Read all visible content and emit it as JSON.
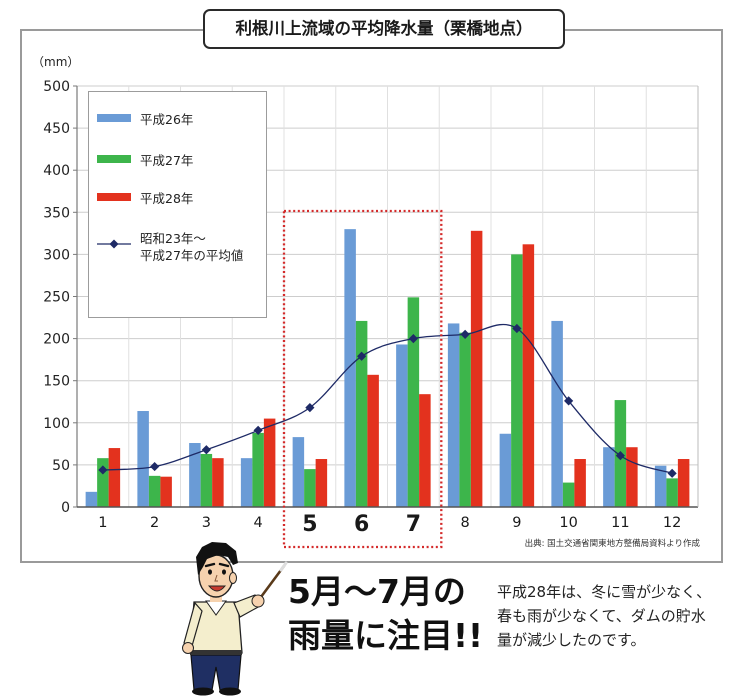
{
  "chart_data": {
    "type": "bar",
    "title": "利根川上流域の平均降水量（栗橋地点）",
    "ylabel": "（mm）",
    "xlabel": "",
    "ylim": [
      0,
      500
    ],
    "yticks": [
      0,
      50,
      100,
      150,
      200,
      250,
      300,
      350,
      400,
      450,
      500
    ],
    "categories": [
      "1",
      "2",
      "3",
      "4",
      "5",
      "6",
      "7",
      "8",
      "9",
      "10",
      "11",
      "12"
    ],
    "series": [
      {
        "name": "平成26年",
        "type": "bar",
        "color": "#6a9bd6",
        "values": [
          18,
          114,
          76,
          58,
          83,
          330,
          193,
          218,
          87,
          221,
          71,
          49
        ]
      },
      {
        "name": "平成27年",
        "type": "bar",
        "color": "#3db54b",
        "values": [
          58,
          37,
          63,
          88,
          45,
          221,
          249,
          207,
          300,
          29,
          127,
          34
        ]
      },
      {
        "name": "平成28年",
        "type": "bar",
        "color": "#e3321e",
        "values": [
          70,
          36,
          58,
          105,
          57,
          157,
          134,
          328,
          312,
          57,
          71,
          57
        ]
      },
      {
        "name": "昭和23年～\n平成27年の平均値",
        "type": "line",
        "marker": "diamond",
        "color": "#1e2a66",
        "values": [
          44,
          48,
          68,
          91,
          118,
          179,
          200,
          205,
          212,
          126,
          61,
          40
        ]
      }
    ],
    "legend": "top-left",
    "grid": true,
    "highlight_range": [
      "5",
      "7"
    ],
    "highlight_color": "#d42a2a",
    "source": "出典: 国土交通省関東地方整備局資料より作成"
  },
  "callout": {
    "line1": "5月～7月の",
    "line2": "雨量に注目!!"
  },
  "note": {
    "lines": [
      "平成28年は、冬に雪が少なく、",
      "春も雨が少なくて、ダムの貯水",
      "量が減少したのです。"
    ]
  },
  "icons": {
    "presenter": "pointing-man-illustration"
  }
}
